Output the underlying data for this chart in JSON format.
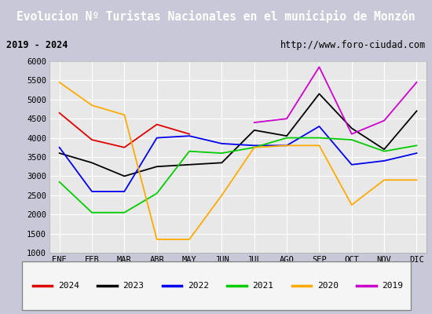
{
  "title": "Evolucion Nº Turistas Nacionales en el municipio de Monzón",
  "subtitle_left": "2019 - 2024",
  "subtitle_right": "http://www.foro-ciudad.com",
  "months": [
    "ENE",
    "FEB",
    "MAR",
    "ABR",
    "MAY",
    "JUN",
    "JUL",
    "AGO",
    "SEP",
    "OCT",
    "NOV",
    "DIC"
  ],
  "ylim": [
    1000,
    6000
  ],
  "yticks": [
    1000,
    1500,
    2000,
    2500,
    3000,
    3500,
    4000,
    4500,
    5000,
    5500,
    6000
  ],
  "series": {
    "2024": {
      "color": "#dd0000",
      "data": [
        4650,
        3950,
        3750,
        4350,
        4100,
        null,
        null,
        null,
        null,
        null,
        null,
        null
      ]
    },
    "2023": {
      "color": "#000000",
      "data": [
        3600,
        3350,
        3000,
        3250,
        3300,
        3350,
        4200,
        4050,
        5150,
        4250,
        3700,
        4700
      ]
    },
    "2022": {
      "color": "#0000ee",
      "data": [
        3750,
        2600,
        2600,
        4000,
        4050,
        3850,
        3800,
        3800,
        4300,
        3300,
        3400,
        3600
      ]
    },
    "2021": {
      "color": "#00cc00",
      "data": [
        2850,
        2050,
        2050,
        2550,
        3650,
        3600,
        3750,
        4000,
        4000,
        3950,
        3650,
        3800
      ]
    },
    "2020": {
      "color": "#ffaa00",
      "data": [
        5450,
        4850,
        4600,
        1350,
        1350,
        2500,
        3750,
        3800,
        3800,
        2250,
        2900,
        2900
      ]
    },
    "2019": {
      "color": "#cc00cc",
      "data": [
        null,
        null,
        null,
        null,
        null,
        null,
        4400,
        4500,
        5850,
        4100,
        4450,
        5450
      ]
    }
  },
  "title_bg": "#4d7ebf",
  "title_color": "#ffffff",
  "title_fontsize": 10.5,
  "subtitle_fontsize": 8.5,
  "plot_bg": "#e8e8e8",
  "frame_bg": "#f0f0f0",
  "outer_bg": "#c8c8d8",
  "legend_order": [
    "2024",
    "2023",
    "2022",
    "2021",
    "2020",
    "2019"
  ]
}
